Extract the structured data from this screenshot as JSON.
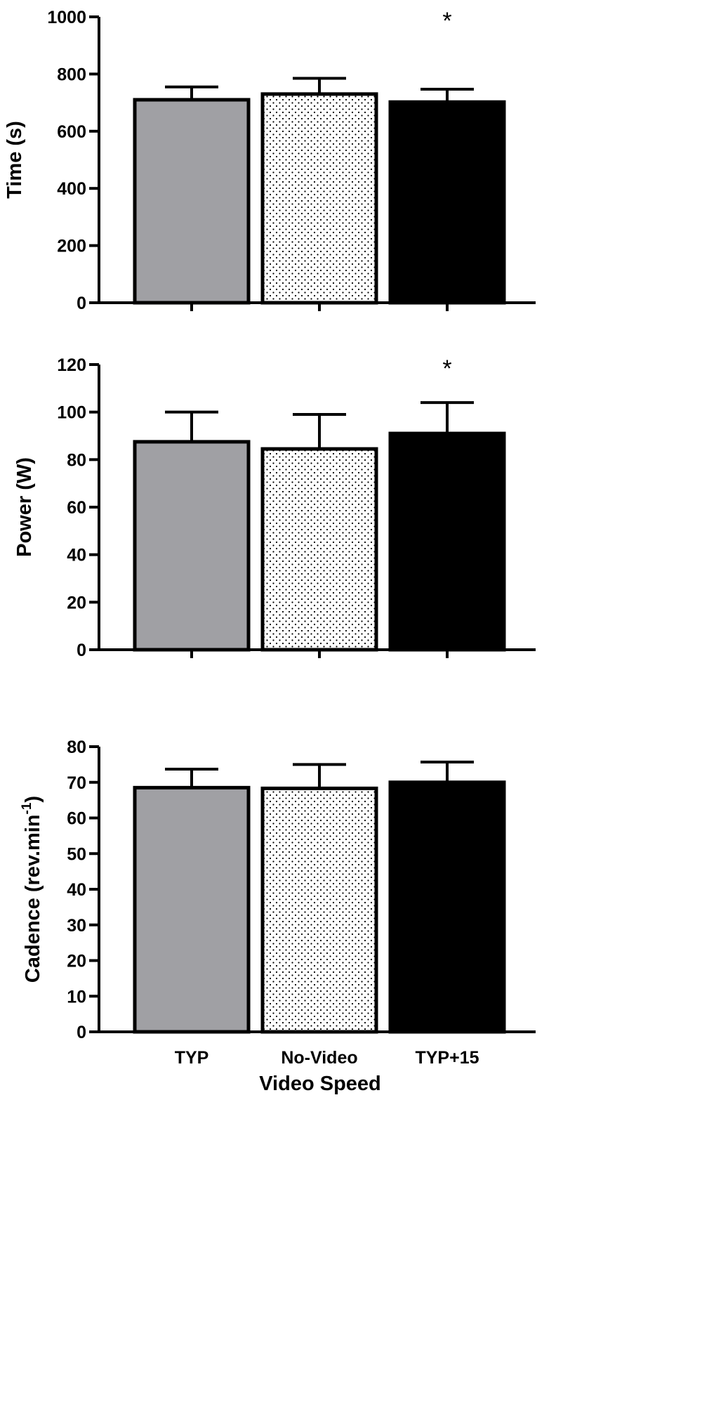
{
  "chart_data": [
    {
      "type": "bar",
      "categories": [
        "TYP",
        "No-Video",
        "TYP+15"
      ],
      "values": [
        710,
        730,
        702
      ],
      "errors": [
        45,
        55,
        45
      ],
      "ylabel": "Time (s)",
      "ylim": [
        0,
        1000
      ],
      "yticks": [
        "0",
        "200",
        "400",
        "600",
        "800",
        "1000"
      ],
      "annotations": [
        "",
        "",
        "*"
      ]
    },
    {
      "type": "bar",
      "categories": [
        "TYP",
        "No-Video",
        "TYP+15"
      ],
      "values": [
        87.5,
        84.5,
        91
      ],
      "errors": [
        12.5,
        14.5,
        13
      ],
      "ylabel": "Power (W)",
      "ylim": [
        0,
        120
      ],
      "yticks": [
        "0",
        "20",
        "40",
        "60",
        "80",
        "100",
        "120"
      ],
      "annotations": [
        "",
        "",
        "*"
      ]
    },
    {
      "type": "bar",
      "categories": [
        "TYP",
        "No-Video",
        "TYP+15"
      ],
      "values": [
        68.5,
        68.3,
        70
      ],
      "errors": [
        5.2,
        6.7,
        5.7
      ],
      "ylabel": "Cadence (rev.min",
      "ylabel_sup": "-1",
      "ylabel_close": ")",
      "ylim": [
        0,
        80
      ],
      "yticks": [
        "0",
        "10",
        "20",
        "30",
        "40",
        "50",
        "60",
        "70",
        "80"
      ],
      "annotations": [
        "",
        "",
        ""
      ],
      "xlabel": "Video Speed",
      "xticklabels": [
        "TYP",
        "No-Video",
        "TYP+15"
      ]
    }
  ],
  "fills": {
    "bar_colors": [
      "#a0a0a4",
      "#ffffff",
      "#000000"
    ],
    "bar_patterns": [
      "solid",
      "dots",
      "solid"
    ],
    "stroke": "#000000"
  }
}
